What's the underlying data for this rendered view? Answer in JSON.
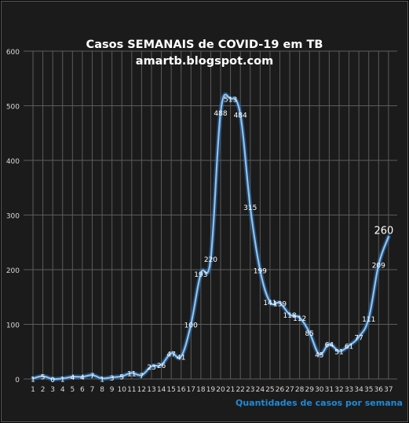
{
  "chart_data": {
    "type": "line",
    "title": "Casos SEMANAIS de COVID-19 em TB",
    "subtitle": "amartb.blogspot.com",
    "xlabel": "Quantidades de casos por semana",
    "ylabel": "",
    "ylim": [
      0,
      600
    ],
    "yticks": [
      0,
      100,
      200,
      300,
      400,
      500,
      600
    ],
    "grid": true,
    "x": [
      1,
      2,
      3,
      4,
      5,
      6,
      7,
      8,
      9,
      10,
      11,
      12,
      13,
      14,
      15,
      16,
      17,
      18,
      19,
      20,
      21,
      22,
      23,
      24,
      25,
      26,
      27,
      28,
      29,
      30,
      31,
      32,
      33,
      34,
      35,
      36,
      37
    ],
    "values": [
      1,
      5,
      0,
      1,
      4,
      4,
      7,
      1,
      3,
      5,
      11,
      7,
      23,
      26,
      47,
      41,
      100,
      193,
      220,
      488,
      513,
      484,
      315,
      199,
      141,
      139,
      118,
      112,
      85,
      45,
      64,
      51,
      61,
      77,
      111,
      209,
      260
    ],
    "highlight_last": true,
    "colors": {
      "background": "#1b1b1b",
      "grid": "#5c5c5c",
      "line": "#8fc3ee",
      "line_glow": "#2f7fd0",
      "axis_text": "#d9d9d9",
      "xlabel": "#1f8bd6"
    }
  }
}
